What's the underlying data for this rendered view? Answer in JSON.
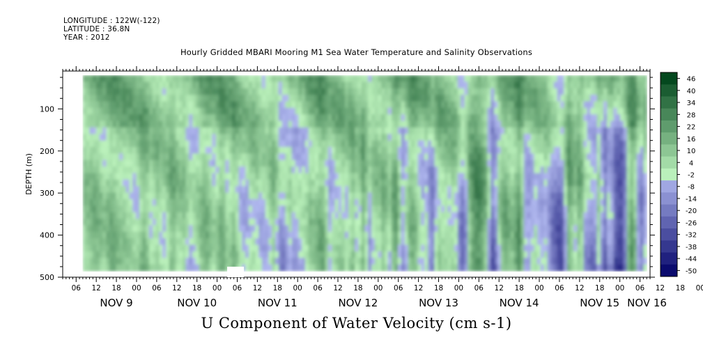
{
  "header": {
    "longitude": "LONGITUDE : 122W(-122)",
    "latitude": "LATITUDE : 36.8N",
    "year": "YEAR : 2012"
  },
  "title": "Hourly Gridded MBARI Mooring M1 Sea Water Temperature and Salinity Observations",
  "variable_title": "U Component of Water Velocity (cm s-1)",
  "colors": {
    "negative_darkest": "#000066",
    "negative_light": "#aab4ee",
    "positive_light": "#b9f2b9",
    "positive_darkest": "#00441b"
  },
  "chart_data": {
    "type": "heatmap",
    "x_axis": {
      "range": [
        "2012-11-08T20:00",
        "2012-11-16T03:00"
      ],
      "hour_ticks": [
        "06",
        "12",
        "18",
        "00",
        "06",
        "12",
        "18",
        "00",
        "06",
        "12",
        "18",
        "00",
        "06",
        "12",
        "18",
        "00",
        "06",
        "12",
        "18",
        "00",
        "06",
        "12",
        "18",
        "00",
        "06",
        "12",
        "18",
        "00",
        "06",
        "12",
        "18",
        "00"
      ],
      "day_labels": [
        "NOV  9",
        "NOV 10",
        "NOV 11",
        "NOV 12",
        "NOV 13",
        "NOV 14",
        "NOV 15",
        "NOV 16"
      ]
    },
    "y_axis": {
      "label": "DEPTH (m)",
      "range": [
        10,
        500
      ],
      "reversed": true,
      "ticks": [
        100,
        200,
        300,
        400,
        500
      ]
    },
    "colorbar": {
      "levels": [
        46,
        40,
        34,
        28,
        22,
        16,
        10,
        4,
        -2,
        -8,
        -14,
        -20,
        -26,
        -32,
        -38,
        -44,
        -50
      ],
      "range": [
        -50,
        50
      ],
      "units": "cm s-1"
    },
    "data_extent": {
      "depth": [
        20,
        485
      ],
      "time": [
        "2012-11-09T02:00",
        "2012-11-16T02:00"
      ]
    },
    "data_gap": {
      "time": [
        "2012-11-10T21:00",
        "2012-11-11T02:00"
      ],
      "depth": [
        475,
        500
      ]
    },
    "pattern_notes": "Mostly positive (green) values; negative (blue) columns growing with time, especially Nov 12-15"
  }
}
